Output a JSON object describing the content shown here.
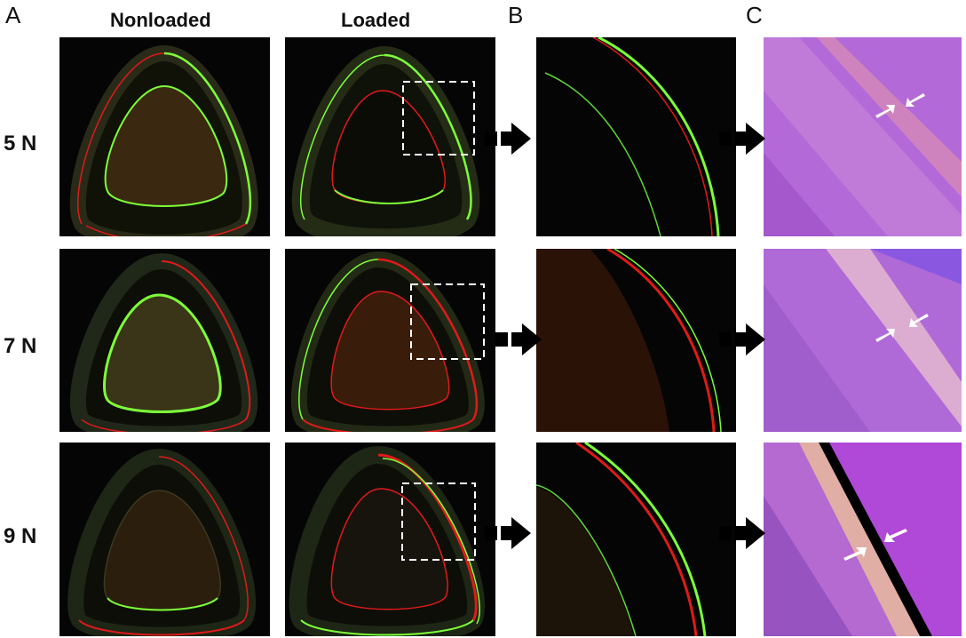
{
  "panels": {
    "a": "A",
    "b": "B",
    "c": "C"
  },
  "columns": {
    "nonloaded": "Nonloaded",
    "loaded": "Loaded"
  },
  "rows": [
    {
      "label": "5 N"
    },
    {
      "label": "7 N"
    },
    {
      "label": "9 N"
    }
  ],
  "colors": {
    "fluor_green": "#7dff3a",
    "fluor_red": "#e01a1a",
    "stain_purple": "#b05cd6",
    "stain_pink": "#d77acb",
    "arrow": "#000000"
  }
}
